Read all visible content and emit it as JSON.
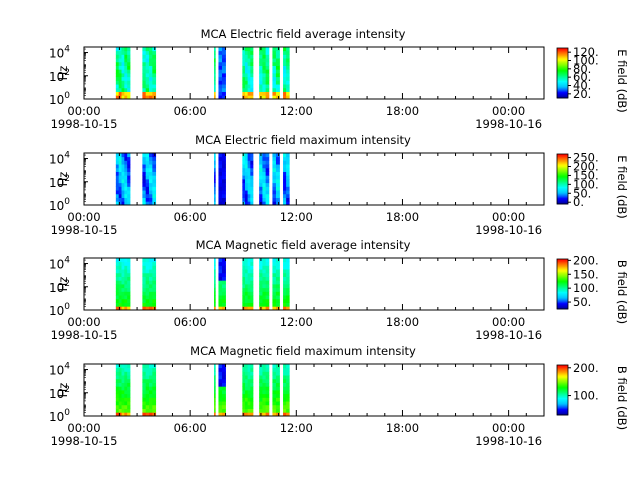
{
  "colors": {
    "background": "#ffffff",
    "axis": "#000000",
    "colormap": [
      "#00008b",
      "#0000ff",
      "#00bfff",
      "#00ffff",
      "#00ff80",
      "#00ff00",
      "#80ff00",
      "#ffff00",
      "#ff8000",
      "#ff0000"
    ]
  },
  "time_axis": {
    "tick_labels": [
      "00:00",
      "06:00",
      "12:00",
      "18:00",
      "00:00"
    ],
    "tick_hours": [
      0,
      6,
      12,
      18,
      24
    ],
    "minor_tick_hour_step": 1,
    "date_labels": [
      "1998-10-15",
      "1998-10-16"
    ],
    "date_label_hours": [
      0,
      24
    ],
    "range_hours": [
      0,
      26
    ]
  },
  "data_blocks_hours": [
    [
      1.8,
      2.6
    ],
    [
      3.3,
      4.05
    ],
    [
      7.35,
      7.42
    ],
    [
      7.6,
      8.0
    ],
    [
      8.95,
      9.55
    ],
    [
      9.9,
      10.45
    ],
    [
      10.65,
      11.05
    ],
    [
      11.25,
      11.6
    ]
  ],
  "chart_data": [
    {
      "type": "heatmap",
      "title": "MCA  Electric field average intensity",
      "ylabel": "Hz",
      "yscale": "log",
      "ylim": [
        1,
        30000
      ],
      "ytick_labels": [
        {
          "base": "10",
          "exp": "0"
        },
        {
          "base": "10",
          "exp": "2"
        },
        {
          "base": "10",
          "exp": "4"
        }
      ],
      "ytick_values": [
        1,
        100,
        10000
      ],
      "colorbar_label": "E field (dB)",
      "colorbar_range": [
        10,
        130
      ],
      "colorbar_tick_labels": [
        "120.",
        "100.",
        "80.",
        "60.",
        "40.",
        "20."
      ],
      "colorbar_ticks": [
        120,
        100,
        80,
        60,
        40,
        20
      ],
      "pattern": "electric_avg"
    },
    {
      "type": "heatmap",
      "title": "MCA  Electric field maximum intensity",
      "ylabel": "Hz",
      "yscale": "log",
      "ylim": [
        1,
        30000
      ],
      "ytick_labels": [
        {
          "base": "10",
          "exp": "0"
        },
        {
          "base": "10",
          "exp": "2"
        },
        {
          "base": "10",
          "exp": "4"
        }
      ],
      "ytick_values": [
        1,
        100,
        10000
      ],
      "colorbar_label": "E field (dB)",
      "colorbar_range": [
        -10,
        270
      ],
      "colorbar_tick_labels": [
        "250.",
        "200.",
        "150.",
        "100.",
        "50.",
        "0."
      ],
      "colorbar_ticks": [
        250,
        200,
        150,
        100,
        50,
        0
      ],
      "pattern": "electric_max"
    },
    {
      "type": "heatmap",
      "title": "MCA  Magnetic field average intensity",
      "ylabel": "Hz",
      "yscale": "log",
      "ylim": [
        1,
        30000
      ],
      "ytick_labels": [
        {
          "base": "10",
          "exp": "0"
        },
        {
          "base": "10",
          "exp": "2"
        },
        {
          "base": "10",
          "exp": "4"
        }
      ],
      "ytick_values": [
        1,
        100,
        10000
      ],
      "colorbar_label": "B field (dB)",
      "colorbar_range": [
        25,
        205
      ],
      "colorbar_tick_labels": [
        "200.",
        "150.",
        "100.",
        "50."
      ],
      "colorbar_ticks": [
        200,
        150,
        100,
        50
      ],
      "pattern": "magnetic_avg"
    },
    {
      "type": "heatmap",
      "title": "MCA  Magnetic field maximum intensity",
      "ylabel": "Hz",
      "yscale": "log",
      "ylim": [
        1,
        30000
      ],
      "ytick_labels": [
        {
          "base": "10",
          "exp": "0"
        },
        {
          "base": "10",
          "exp": "2"
        },
        {
          "base": "10",
          "exp": "4"
        }
      ],
      "ytick_values": [
        1,
        100,
        10000
      ],
      "colorbar_label": "B field (dB)",
      "colorbar_range": [
        30,
        210
      ],
      "colorbar_tick_labels": [
        "200.",
        "100."
      ],
      "colorbar_ticks": [
        200,
        100
      ],
      "pattern": "magnetic_max"
    }
  ]
}
